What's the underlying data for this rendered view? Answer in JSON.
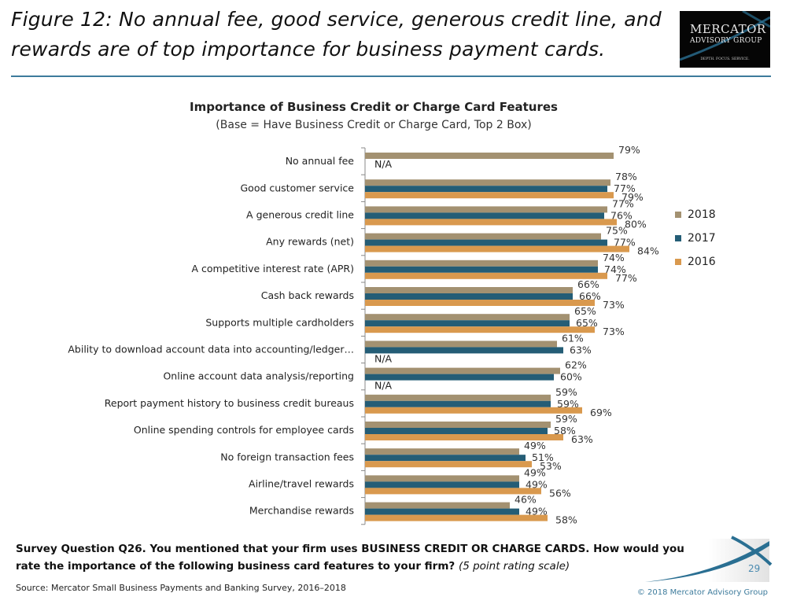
{
  "header": {
    "title": "Figure 12: No annual fee, good service, generous credit line, and rewards are of top importance for business payment cards.",
    "logo": {
      "line1": "MERCATOR",
      "line2": "ADVISORY GROUP",
      "tagline": "DEPTH. FOCUS. SERVICE."
    }
  },
  "chart_data": {
    "type": "bar",
    "orientation": "horizontal",
    "title": "Importance of Business Credit or Charge Card Features",
    "subtitle": "(Base = Have Business Credit or Charge Card, Top 2 Box)",
    "categories": [
      "No annual fee",
      "Good customer service",
      "A generous credit line",
      "Any rewards (net)",
      "A competitive interest rate (APR)",
      "Cash back rewards",
      "Supports multiple cardholders",
      "Ability to download account data into accounting/ledger…",
      "Online account data analysis/reporting",
      "Report payment history to business credit bureaus",
      "Online spending controls for employee cards",
      "No foreign transaction fees",
      "Airline/travel rewards",
      "Merchandise rewards"
    ],
    "series": [
      {
        "name": "2018",
        "color": "#A39171",
        "values": [
          79,
          78,
          77,
          75,
          74,
          66,
          65,
          61,
          62,
          59,
          59,
          49,
          49,
          46
        ]
      },
      {
        "name": "2017",
        "color": "#245D76",
        "values": [
          null,
          77,
          76,
          77,
          74,
          66,
          65,
          63,
          60,
          59,
          58,
          51,
          49,
          49
        ]
      },
      {
        "name": "2016",
        "color": "#D9994E",
        "values": [
          null,
          79,
          80,
          84,
          77,
          73,
          73,
          null,
          null,
          69,
          63,
          53,
          56,
          58
        ]
      }
    ],
    "na_label": "N/A",
    "value_suffix": "%",
    "xlim": [
      0,
      100
    ],
    "legend_position": "right"
  },
  "footer": {
    "question_bold": "Survey Question Q26. You mentioned that your firm uses BUSINESS CREDIT OR CHARGE CARDS. How would you rate the importance of the following business card features to your firm?",
    "question_note": "(5 point rating scale)",
    "source": "Source: Mercator Small Business Payments and Banking Survey, 2016–2018",
    "copyright": "© 2018 Mercator Advisory Group",
    "page_number": "29"
  }
}
